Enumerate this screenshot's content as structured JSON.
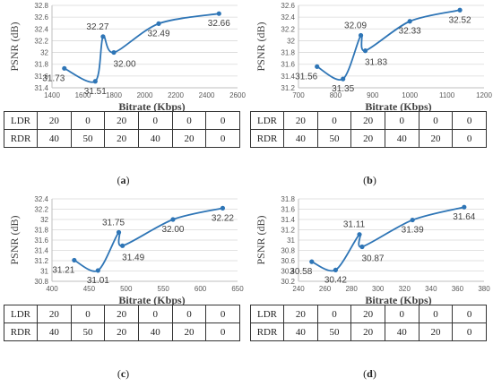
{
  "chart_data": [
    {
      "id": "a",
      "type": "line",
      "caption": "a",
      "xlabel": "Bitrate (Kbps)",
      "ylabel": "PSNR (dB)",
      "xlim": [
        1400,
        2600
      ],
      "ylim": [
        31.4,
        32.8
      ],
      "xticks": [
        1400,
        1600,
        1800,
        2000,
        2200,
        2400,
        2600
      ],
      "yticks": [
        31.4,
        31.6,
        31.8,
        32,
        32.2,
        32.4,
        32.6,
        32.8
      ],
      "yticklabels": [
        "31.4",
        "31.6",
        "31.8",
        "32",
        "32.2",
        "32.4",
        "32.6",
        "32.8"
      ],
      "points": [
        {
          "x": 1480,
          "y": 31.73,
          "label": "31.73"
        },
        {
          "x": 1680,
          "y": 31.51,
          "label": "31.51"
        },
        {
          "x": 1730,
          "y": 32.27,
          "label": "32.27"
        },
        {
          "x": 1800,
          "y": 32.0,
          "label": "32.00"
        },
        {
          "x": 2090,
          "y": 32.49,
          "label": "32.49"
        },
        {
          "x": 2480,
          "y": 32.66,
          "label": "32.66"
        }
      ],
      "table": {
        "rows": [
          {
            "label": "LDR",
            "values": [
              "20",
              "0",
              "20",
              "0",
              "0",
              "0"
            ]
          },
          {
            "label": "RDR",
            "values": [
              "40",
              "50",
              "20",
              "40",
              "20",
              "0"
            ]
          }
        ]
      }
    },
    {
      "id": "b",
      "type": "line",
      "caption": "b",
      "xlabel": "Bitrate (Kbps)",
      "ylabel": "PSNR (dB)",
      "xlim": [
        700,
        1200
      ],
      "ylim": [
        31.2,
        32.6
      ],
      "xticks": [
        700,
        800,
        900,
        1000,
        1100,
        1200
      ],
      "yticks": [
        31.2,
        31.4,
        31.6,
        31.8,
        32,
        32.2,
        32.4,
        32.6
      ],
      "yticklabels": [
        "31.2",
        "31.4",
        "31.6",
        "31.8",
        "32",
        "32.2",
        "32.4",
        "32.6"
      ],
      "points": [
        {
          "x": 750,
          "y": 31.56,
          "label": "31.56"
        },
        {
          "x": 820,
          "y": 31.35,
          "label": "31.35"
        },
        {
          "x": 868,
          "y": 32.09,
          "label": "32.09"
        },
        {
          "x": 880,
          "y": 31.83,
          "label": "31.83"
        },
        {
          "x": 1000,
          "y": 32.33,
          "label": "32.33"
        },
        {
          "x": 1135,
          "y": 32.52,
          "label": "32.52"
        }
      ],
      "table": {
        "rows": [
          {
            "label": "LDR",
            "values": [
              "20",
              "0",
              "20",
              "0",
              "0",
              "0"
            ]
          },
          {
            "label": "RDR",
            "values": [
              "40",
              "50",
              "20",
              "40",
              "20",
              "0"
            ]
          }
        ]
      }
    },
    {
      "id": "c",
      "type": "line",
      "caption": "c",
      "xlabel": "Bitrate (Kbps)",
      "ylabel": "PSNR (dB)",
      "xlim": [
        400,
        650
      ],
      "ylim": [
        30.8,
        32.4
      ],
      "xticks": [
        400,
        450,
        500,
        550,
        600,
        650
      ],
      "yticks": [
        30.8,
        31,
        31.2,
        31.4,
        31.6,
        31.8,
        32,
        32.2,
        32.4
      ],
      "yticklabels": [
        "30.8",
        "31",
        "31.2",
        "31.4",
        "31.6",
        "31.8",
        "32",
        "32.2",
        "32.4"
      ],
      "points": [
        {
          "x": 430,
          "y": 31.21,
          "label": "31.21"
        },
        {
          "x": 462,
          "y": 31.01,
          "label": "31.01"
        },
        {
          "x": 490,
          "y": 31.75,
          "label": "31.75"
        },
        {
          "x": 495,
          "y": 31.49,
          "label": "31.49"
        },
        {
          "x": 563,
          "y": 32.0,
          "label": "32.00"
        },
        {
          "x": 630,
          "y": 32.22,
          "label": "32.22"
        }
      ],
      "table": {
        "rows": [
          {
            "label": "LDR",
            "values": [
              "20",
              "0",
              "20",
              "0",
              "0",
              "0"
            ]
          },
          {
            "label": "RDR",
            "values": [
              "40",
              "50",
              "20",
              "40",
              "20",
              "0"
            ]
          }
        ]
      }
    },
    {
      "id": "d",
      "type": "line",
      "caption": "d",
      "xlabel": "Bitrate (Kbps)",
      "ylabel": "PSNR (dB)",
      "xlim": [
        240,
        380
      ],
      "ylim": [
        30.2,
        31.8
      ],
      "xticks": [
        240,
        260,
        280,
        300,
        320,
        340,
        360,
        380
      ],
      "yticks": [
        30.2,
        30.4,
        30.6,
        30.8,
        31,
        31.2,
        31.4,
        31.6,
        31.8
      ],
      "yticklabels": [
        "30.2",
        "30.4",
        "30.6",
        "30.8",
        "31",
        "31.2",
        "31.4",
        "31.6",
        "31.8"
      ],
      "points": [
        {
          "x": 250,
          "y": 30.58,
          "label": "30.58"
        },
        {
          "x": 268,
          "y": 30.42,
          "label": "30.42"
        },
        {
          "x": 286,
          "y": 31.11,
          "label": "31.11"
        },
        {
          "x": 288,
          "y": 30.87,
          "label": "30.87"
        },
        {
          "x": 326,
          "y": 31.39,
          "label": "31.39"
        },
        {
          "x": 365,
          "y": 31.64,
          "label": "31.64"
        }
      ],
      "table": {
        "rows": [
          {
            "label": "LDR",
            "values": [
              "20",
              "0",
              "20",
              "0",
              "0",
              "0"
            ]
          },
          {
            "label": "RDR",
            "values": [
              "40",
              "50",
              "20",
              "40",
              "20",
              "0"
            ]
          }
        ]
      }
    }
  ],
  "series_color": "#2E75B6"
}
